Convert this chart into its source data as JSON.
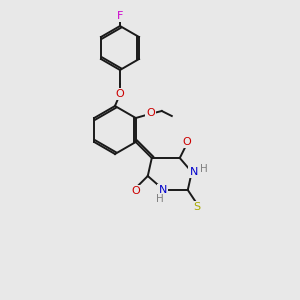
{
  "bg_color": "#e8e8e8",
  "bond_color": "#1a1a1a",
  "figsize": [
    3.0,
    3.0
  ],
  "dpi": 100,
  "atom_colors": {
    "F": "#cc00cc",
    "O": "#cc0000",
    "N": "#0000cc",
    "S": "#aaaa00",
    "H_on_N": "#808080",
    "C": "#1a1a1a"
  }
}
